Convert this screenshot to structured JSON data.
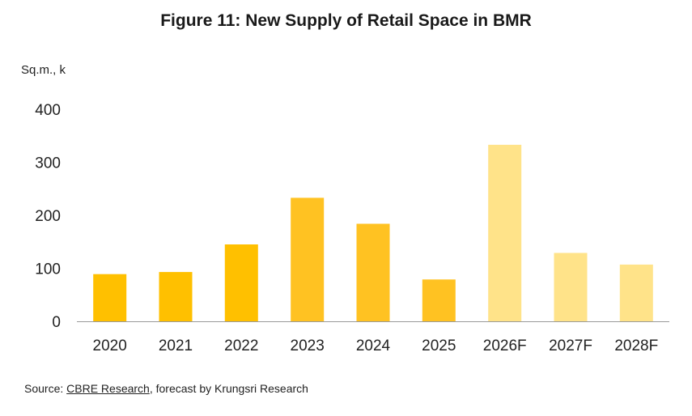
{
  "chart_data": {
    "type": "bar",
    "title": "Figure 11: New Supply of Retail Space in BMR",
    "ylabel": "Sq.m., k",
    "xlabel": "",
    "categories": [
      "2020",
      "2021",
      "2022",
      "2023",
      "2024",
      "2025",
      "2026F",
      "2027F",
      "2028F"
    ],
    "values": [
      89,
      93,
      145,
      233,
      184,
      79,
      333,
      129,
      107
    ],
    "ylim": [
      0,
      400
    ],
    "yticks": [
      "0",
      "100",
      "200",
      "300",
      "400"
    ],
    "grid": false,
    "legend": "none",
    "colors": [
      "#FFC000",
      "#FFC000",
      "#FFC000",
      "#FFC222",
      "#FFC222",
      "#FFC222",
      "#FFE389",
      "#FFE389",
      "#FFE389"
    ]
  },
  "source": {
    "prefix": "Source: ",
    "link": "CBRE Research",
    "suffix": ", forecast by Krungsri Research"
  }
}
